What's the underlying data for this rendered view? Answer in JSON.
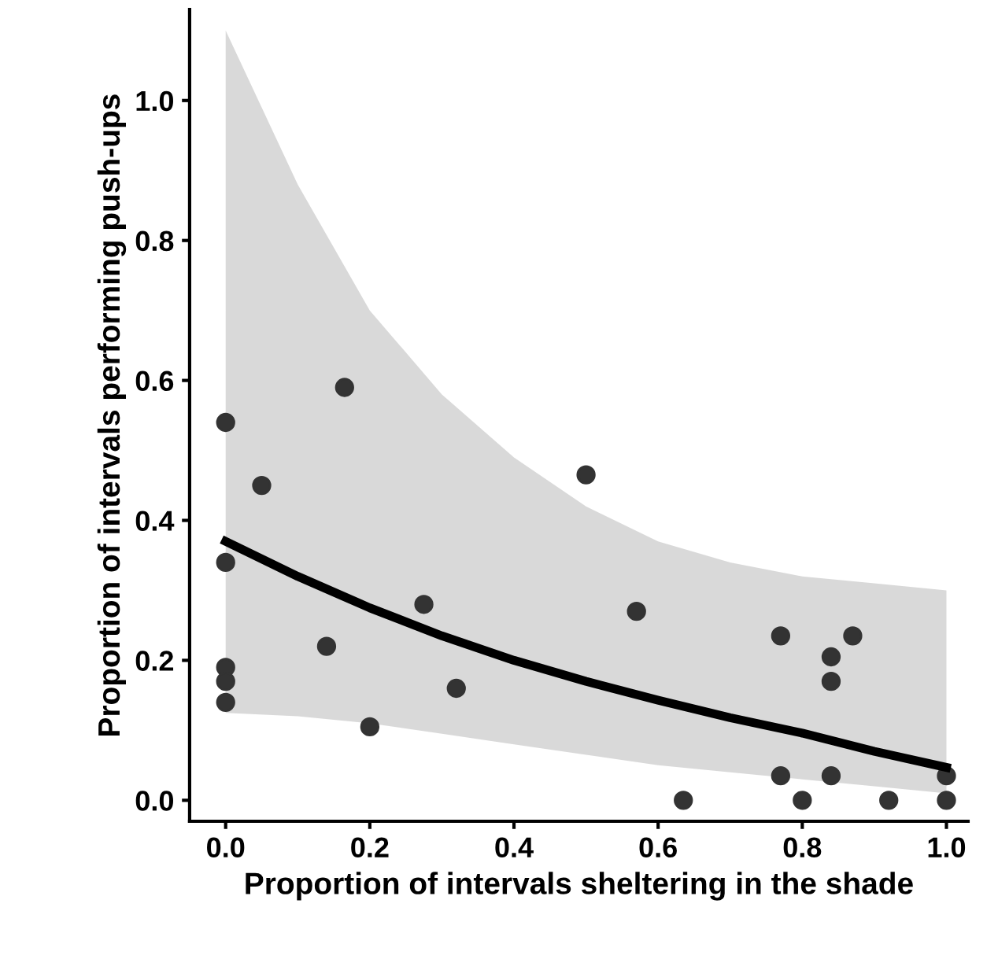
{
  "chart_data": {
    "type": "scatter",
    "xlabel": "Proportion of intervals sheltering in the shade",
    "ylabel": "Proportion of intervals performing push-ups",
    "xlim": [
      -0.05,
      1.03
    ],
    "ylim": [
      -0.03,
      1.13
    ],
    "xticks": [
      {
        "value": 0,
        "label": "0.0"
      },
      0.2,
      0.4,
      0.6,
      0.8,
      {
        "value": 1,
        "label": "1.0"
      }
    ],
    "yticks": [
      {
        "value": 0,
        "label": "0.0"
      },
      0.2,
      0.4,
      0.6,
      0.8,
      {
        "value": 1,
        "label": "1.0"
      }
    ],
    "grid": false,
    "series": [
      {
        "type": "line",
        "color": "#000000",
        "marker": "none",
        "x": [
          0,
          0.1,
          0.2,
          0.3,
          0.4,
          0.5,
          0.6,
          0.7,
          0.8,
          0.9,
          1.0
        ],
        "values": [
          0.37,
          0.32,
          0.275,
          0.235,
          0.2,
          0.17,
          0.143,
          0.118,
          0.096,
          0.07,
          0.047
        ],
        "lower": [
          0.125,
          0.12,
          0.11,
          0.095,
          0.08,
          0.065,
          0.05,
          0.04,
          0.03,
          0.02,
          0.01
        ],
        "upper": [
          1.1,
          0.88,
          0.7,
          0.58,
          0.49,
          0.42,
          0.37,
          0.34,
          0.32,
          0.31,
          0.3
        ]
      },
      {
        "color": "#333333",
        "marker": "circle",
        "x": [
          0,
          0,
          0,
          0,
          0,
          0.05,
          0.165,
          0.14,
          0.2,
          0.275,
          0.32,
          0.5,
          0.57,
          0.635,
          0.77,
          0.77,
          0.8,
          0.84,
          0.84,
          0.84,
          0.87,
          0.92,
          1.0,
          1.0
        ],
        "values": [
          0.54,
          0.34,
          0.19,
          0.17,
          0.14,
          0.45,
          0.59,
          0.22,
          0.105,
          0.28,
          0.16,
          0.465,
          0.27,
          0,
          0.235,
          0.035,
          0,
          0.17,
          0.205,
          0.035,
          0.235,
          0,
          0,
          0.035
        ]
      }
    ]
  }
}
